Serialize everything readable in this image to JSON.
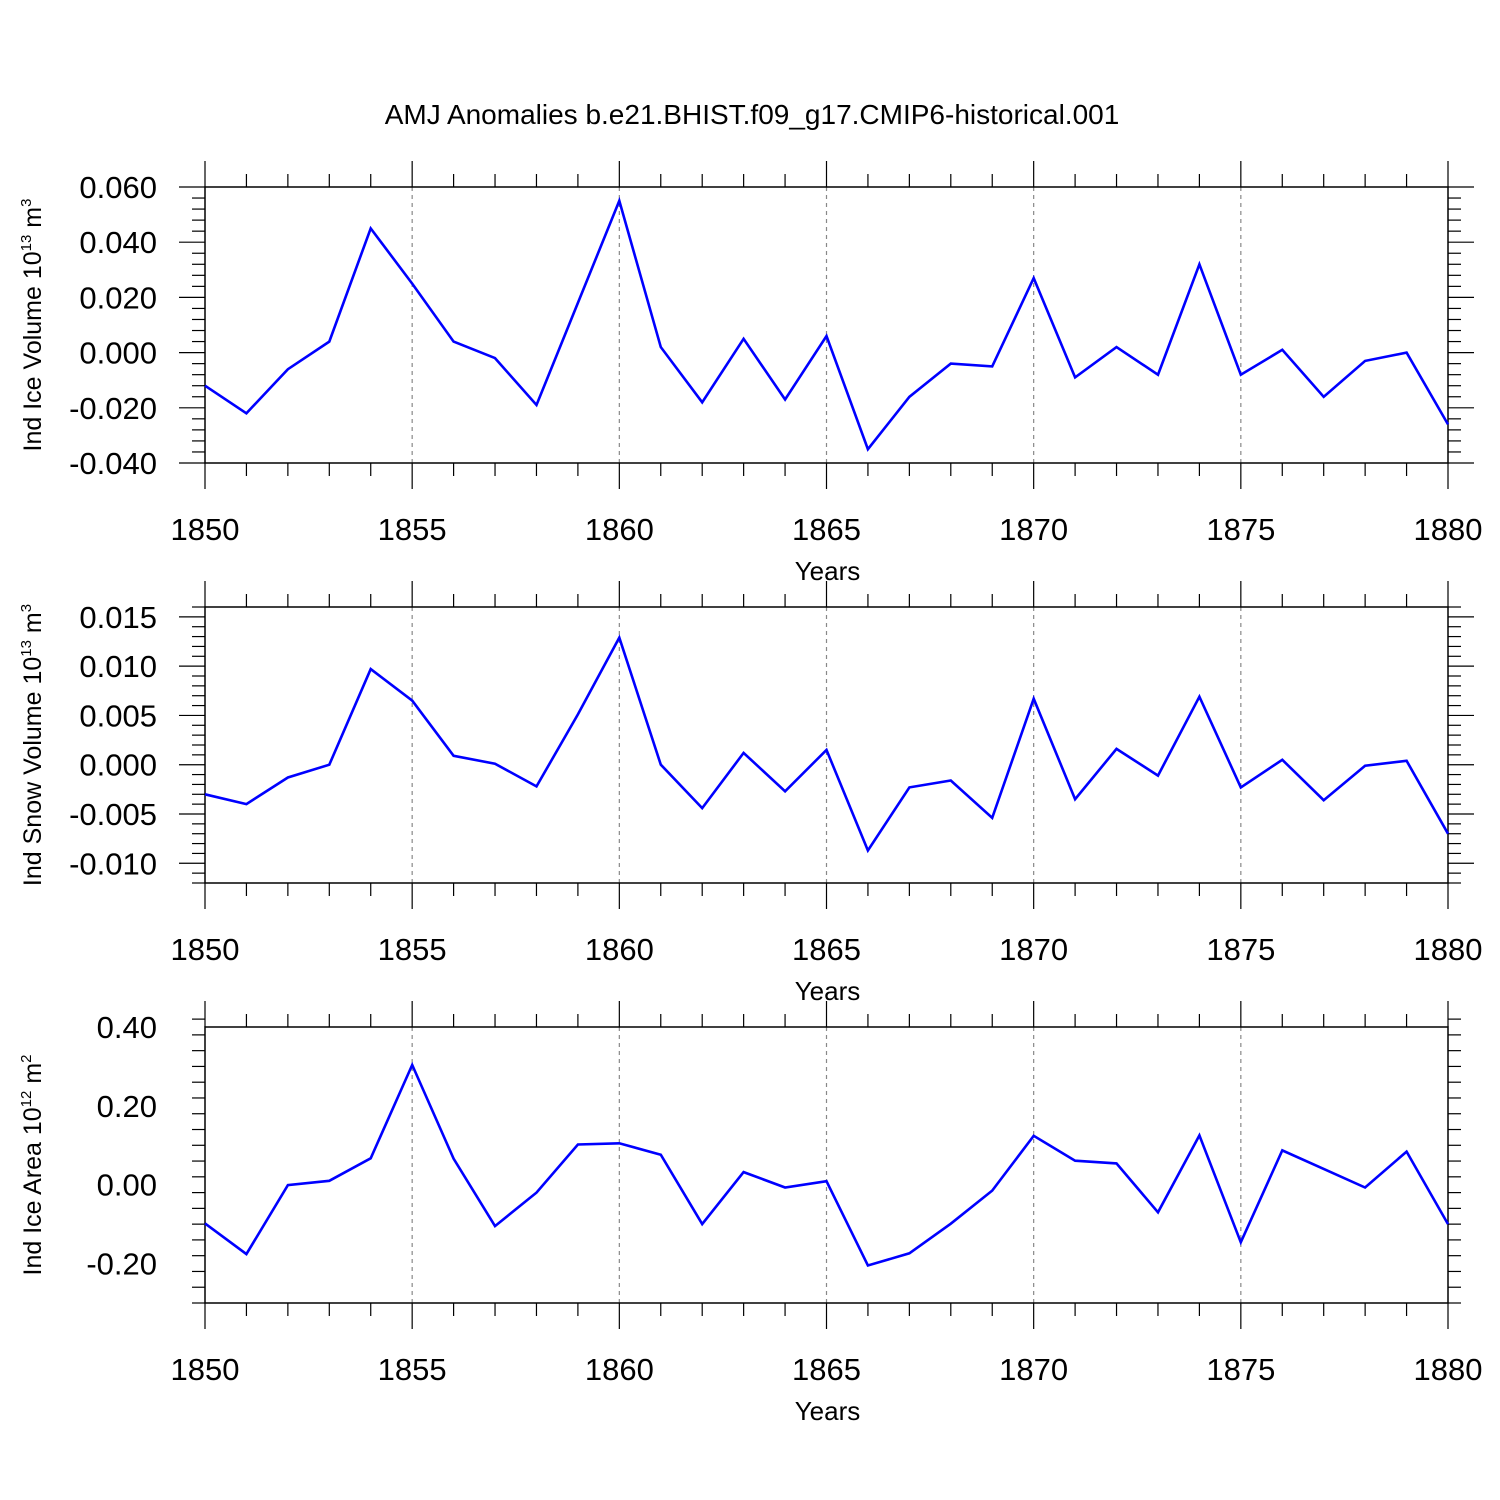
{
  "title": "AMJ Anomalies b.e21.BHIST.f09_g17.CMIP6-historical.001",
  "chart_data": [
    {
      "type": "line",
      "ylabel": {
        "text": "Ind Ice Volume 10",
        "exp": "13",
        "unit": " m",
        "unit_exp": "3"
      },
      "xlabel": "Years",
      "xlim": [
        1850,
        1880
      ],
      "ylim": [
        -0.04,
        0.06
      ],
      "yticks": [
        -0.04,
        -0.02,
        0.0,
        0.02,
        0.04,
        0.06
      ],
      "ytick_labels": [
        "-0.040",
        "-0.020",
        "0.000",
        "0.020",
        "0.040",
        "0.060"
      ],
      "xticks": [
        1850,
        1855,
        1860,
        1865,
        1870,
        1875,
        1880
      ],
      "xtick_labels": [
        "1850",
        "1855",
        "1860",
        "1865",
        "1870",
        "1875",
        "1880"
      ],
      "grid": "vertical dashed at labeled years",
      "color": "#0000ff",
      "x": [
        1850,
        1851,
        1852,
        1853,
        1854,
        1855,
        1856,
        1857,
        1858,
        1859,
        1860,
        1861,
        1862,
        1863,
        1864,
        1865,
        1866,
        1867,
        1868,
        1869,
        1870,
        1871,
        1872,
        1873,
        1874,
        1875,
        1876,
        1877,
        1878,
        1879,
        1880
      ],
      "values": [
        -0.012,
        -0.022,
        -0.006,
        0.004,
        0.045,
        0.025,
        0.004,
        -0.002,
        -0.019,
        0.018,
        0.055,
        0.002,
        -0.018,
        0.005,
        -0.017,
        0.006,
        -0.035,
        -0.016,
        -0.004,
        -0.005,
        0.027,
        -0.009,
        0.002,
        -0.008,
        0.032,
        -0.008,
        0.001,
        -0.016,
        -0.003,
        0.0,
        -0.026
      ]
    },
    {
      "type": "line",
      "ylabel": {
        "text": "Ind Snow Volume 10",
        "exp": "13",
        "unit": " m",
        "unit_exp": "3"
      },
      "xlabel": "Years",
      "xlim": [
        1850,
        1880
      ],
      "ylim": [
        -0.012,
        0.016
      ],
      "yticks": [
        -0.01,
        -0.005,
        0.0,
        0.005,
        0.01,
        0.015
      ],
      "ytick_labels": [
        "-0.010",
        "-0.005",
        "0.000",
        "0.005",
        "0.010",
        "0.015"
      ],
      "xticks": [
        1850,
        1855,
        1860,
        1865,
        1870,
        1875,
        1880
      ],
      "xtick_labels": [
        "1850",
        "1855",
        "1860",
        "1865",
        "1870",
        "1875",
        "1880"
      ],
      "grid": "vertical dashed at labeled years",
      "color": "#0000ff",
      "x": [
        1850,
        1851,
        1852,
        1853,
        1854,
        1855,
        1856,
        1857,
        1858,
        1859,
        1860,
        1861,
        1862,
        1863,
        1864,
        1865,
        1866,
        1867,
        1868,
        1869,
        1870,
        1871,
        1872,
        1873,
        1874,
        1875,
        1876,
        1877,
        1878,
        1879,
        1880
      ],
      "values": [
        -0.003,
        -0.004,
        -0.0013,
        0.0,
        0.0097,
        0.0065,
        0.0009,
        0.0001,
        -0.0022,
        0.0051,
        0.0129,
        0.0,
        -0.0044,
        0.0012,
        -0.0027,
        0.0015,
        -0.0087,
        -0.0023,
        -0.0016,
        -0.0054,
        0.0067,
        -0.0035,
        0.0016,
        -0.0011,
        0.0069,
        -0.0023,
        0.0005,
        -0.0036,
        -0.0001,
        0.0004,
        -0.007
      ]
    },
    {
      "type": "line",
      "ylabel": {
        "text": "Ind Ice Area 10",
        "exp": "12",
        "unit": " m",
        "unit_exp": "2"
      },
      "xlabel": "Years",
      "xlim": [
        1850,
        1880
      ],
      "ylim": [
        -0.3,
        0.4
      ],
      "yticks": [
        -0.2,
        0.0,
        0.2,
        0.4
      ],
      "ytick_labels": [
        "-0.20",
        "0.00",
        "0.20",
        "0.40"
      ],
      "xticks": [
        1850,
        1855,
        1860,
        1865,
        1870,
        1875,
        1880
      ],
      "xtick_labels": [
        "1850",
        "1855",
        "1860",
        "1865",
        "1870",
        "1875",
        "1880"
      ],
      "grid": "vertical dashed at labeled years",
      "color": "#0000ff",
      "x": [
        1850,
        1851,
        1852,
        1853,
        1854,
        1855,
        1856,
        1857,
        1858,
        1859,
        1860,
        1861,
        1862,
        1863,
        1864,
        1865,
        1866,
        1867,
        1868,
        1869,
        1870,
        1871,
        1872,
        1873,
        1874,
        1875,
        1876,
        1877,
        1878,
        1879,
        1880
      ],
      "values": [
        -0.098,
        -0.176,
        -0.001,
        0.01,
        0.067,
        0.304,
        0.066,
        -0.105,
        -0.02,
        0.102,
        0.105,
        0.076,
        -0.1,
        0.032,
        -0.007,
        0.009,
        -0.205,
        -0.174,
        -0.099,
        -0.015,
        0.124,
        0.061,
        0.054,
        -0.07,
        0.125,
        -0.146,
        0.087,
        0.04,
        -0.007,
        0.084,
        -0.1
      ]
    }
  ]
}
